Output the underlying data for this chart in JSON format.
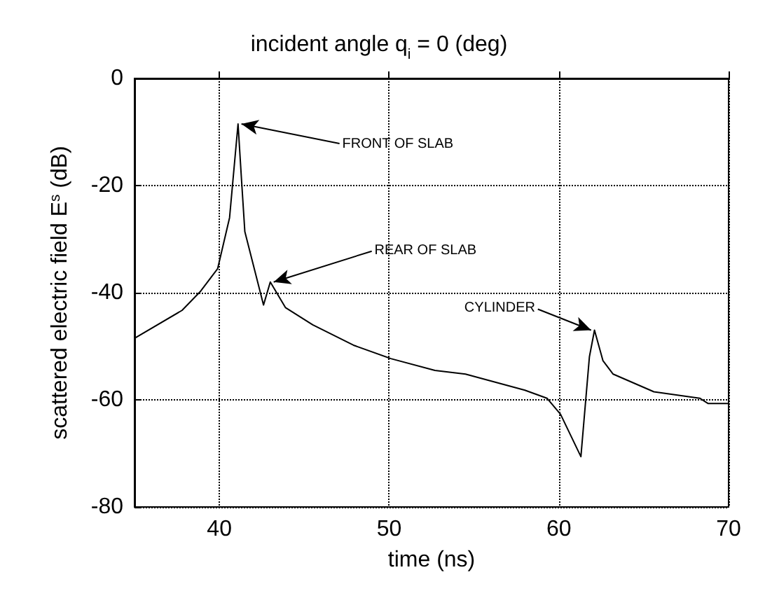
{
  "chart_data": {
    "type": "line",
    "title": "incident angle q$_{i}$ = 0 (deg)",
    "xlabel": "time (ns)",
    "ylabel": "scattered electric field E$^{s}$ (dB)",
    "x": [
      35,
      37.8,
      38.9,
      39.9,
      40.6,
      41.1,
      41.3,
      41.5,
      42.6,
      43.0,
      43.9,
      45.5,
      47.9,
      50.1,
      52.7,
      54.5,
      58,
      59.3,
      60.1,
      61.3,
      61.8,
      62.1,
      62.6,
      63.2,
      65.6,
      68.3,
      68.8,
      70
    ],
    "series": [
      {
        "color": "#000000",
        "values": [
          -48.5,
          -43.3,
          -39.7,
          -35.5,
          -26,
          -8.5,
          -18.7,
          -28.6,
          -42.3,
          -38,
          -42.8,
          -46,
          -49.8,
          -52.3,
          -54.5,
          -55.2,
          -58.2,
          -59.7,
          -62.7,
          -70.6,
          -52,
          -47,
          -52.7,
          -55.2,
          -58.5,
          -59.7,
          -60.7,
          -60.7
        ]
      }
    ],
    "xlim": [
      35,
      70
    ],
    "xticks": [
      40,
      50,
      60,
      70
    ],
    "ylim": [
      -80,
      0
    ],
    "yticks": [
      -80,
      -60,
      -40,
      -20,
      0
    ],
    "grid": true,
    "marker": "none",
    "line_style": "solid",
    "annotations": [
      {
        "text": "FRONT OF SLAB",
        "x": 41.3,
        "y": -8.5
      },
      {
        "text": "REAR OF SLAB",
        "x": 43.2,
        "y": -38
      },
      {
        "text": "CYLINDER",
        "x": 61.9,
        "y": -47
      }
    ]
  }
}
